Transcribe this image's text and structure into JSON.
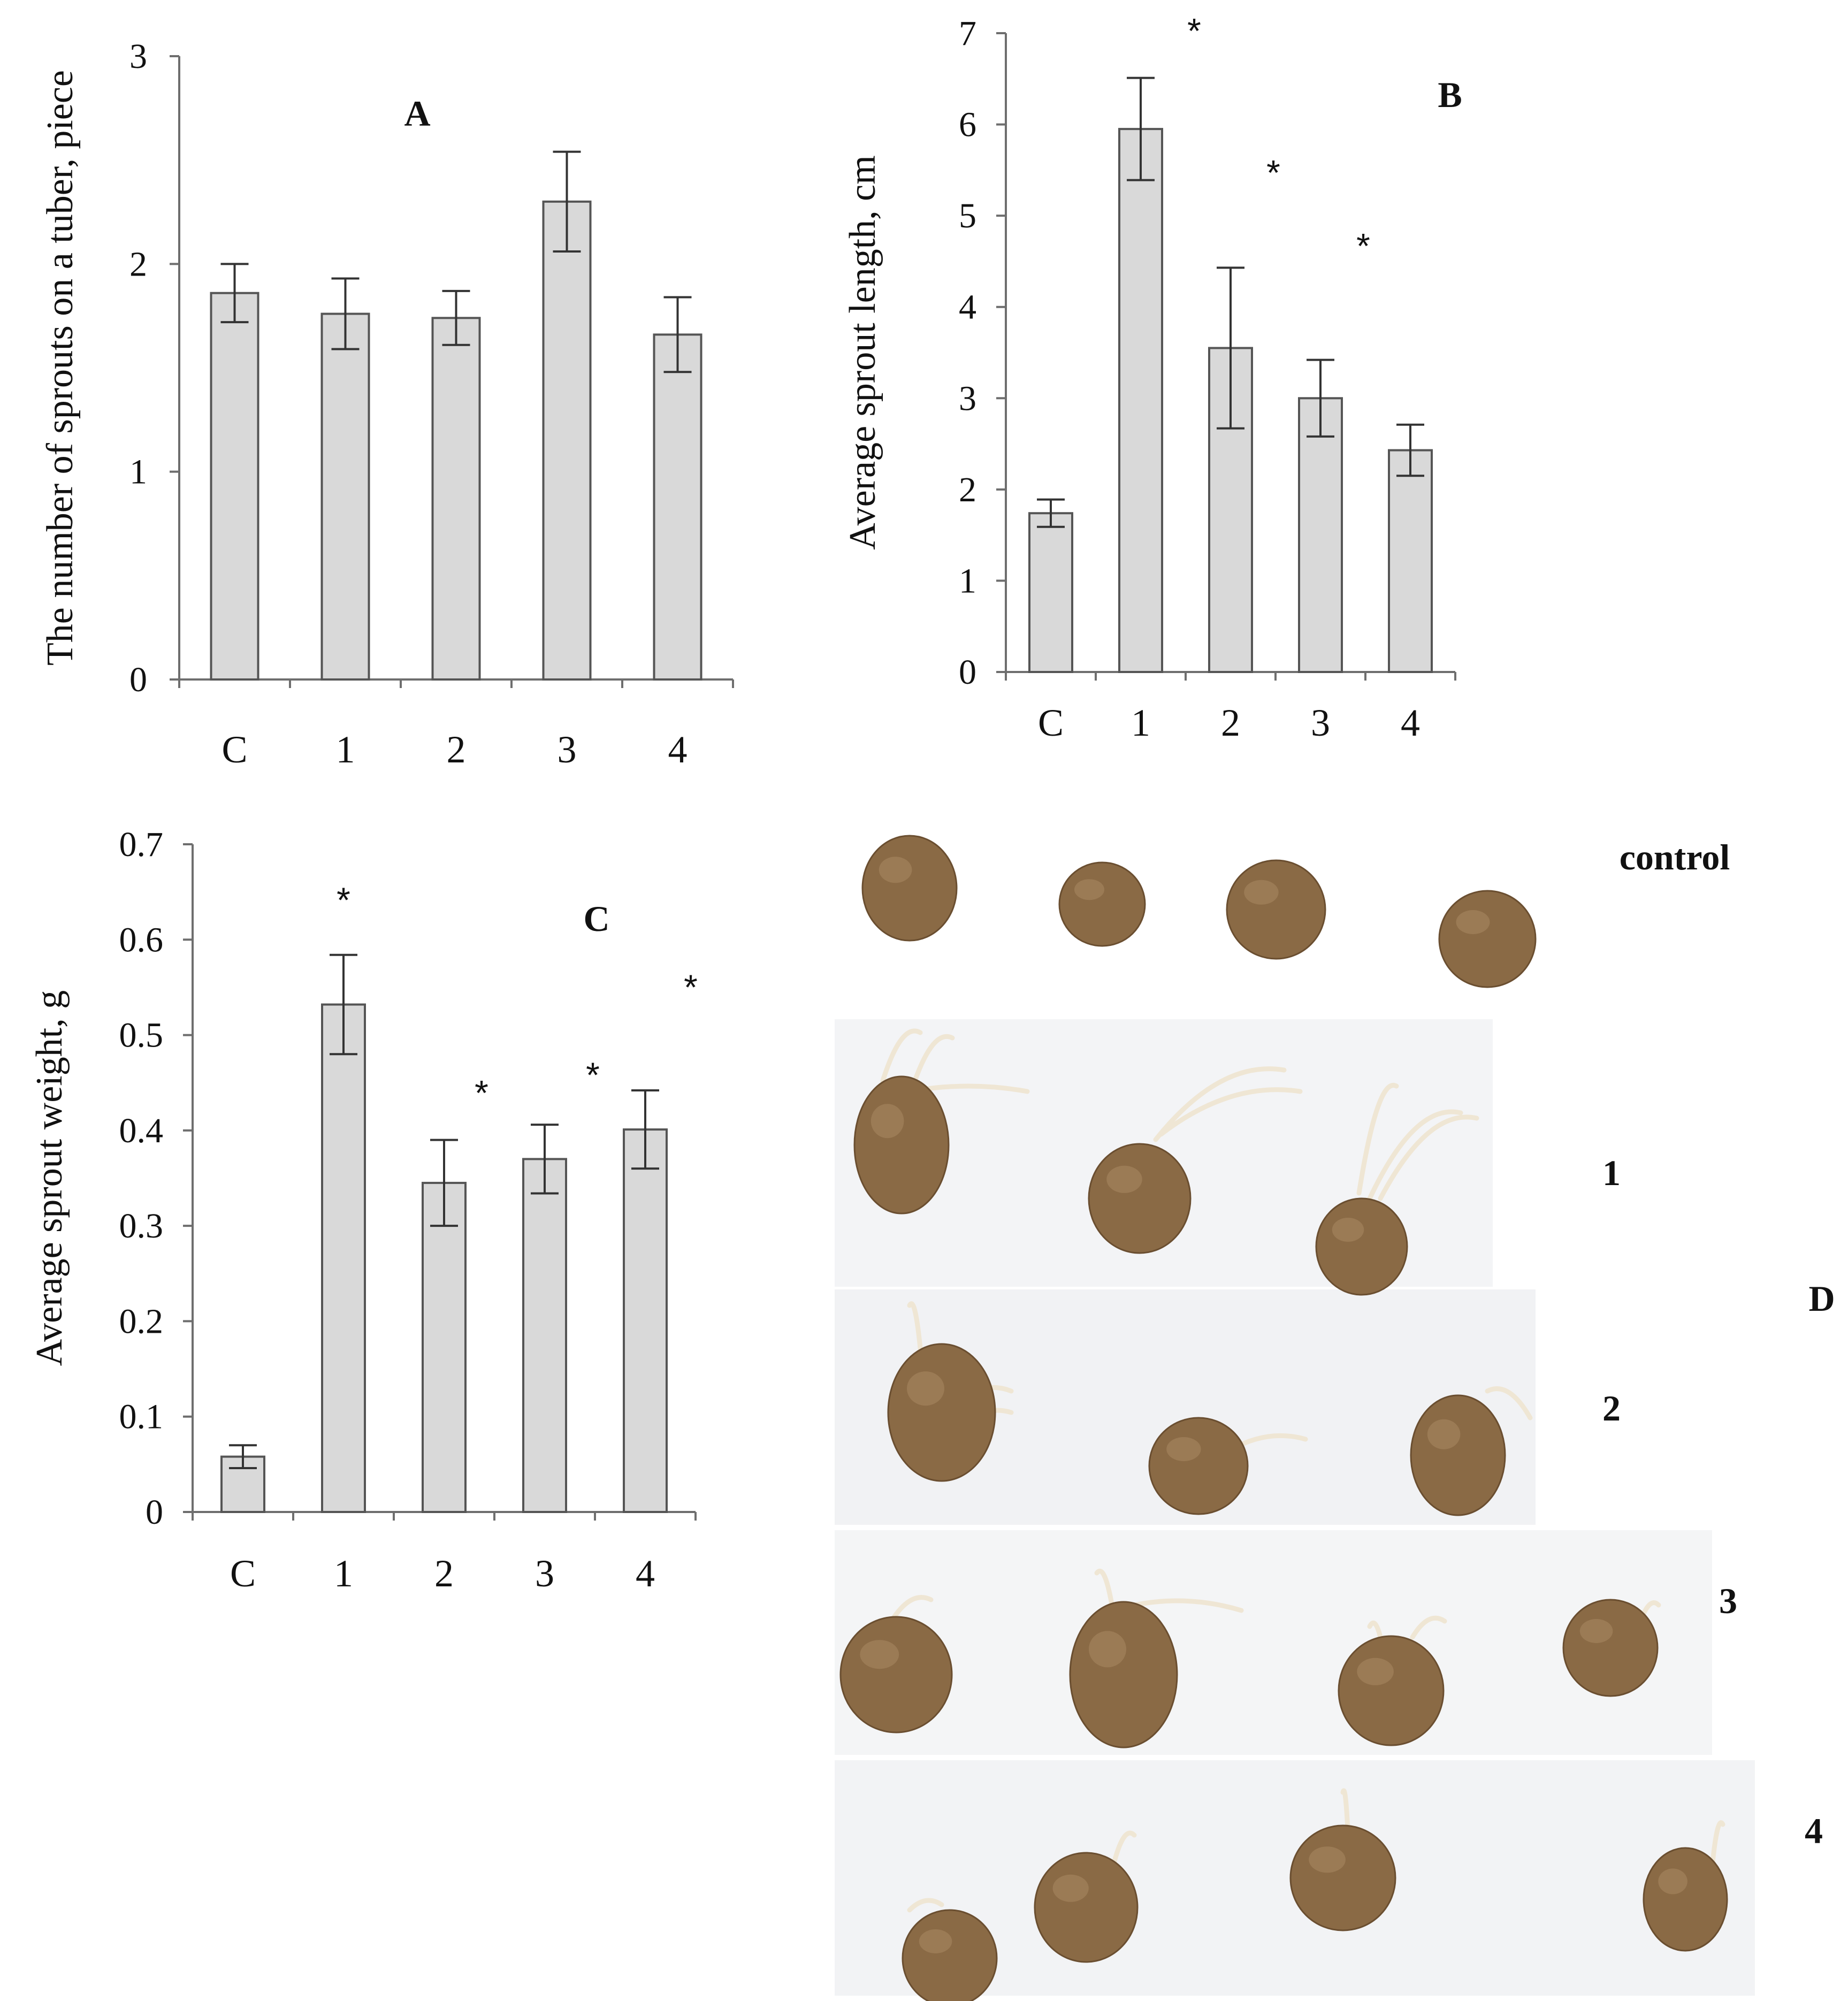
{
  "chart_data": [
    {
      "panel": "A",
      "type": "bar",
      "title": "A",
      "xlabel": "",
      "ylabel": "The number of sprouts on a tuber, piece",
      "categories": [
        "C",
        "1",
        "2",
        "3",
        "4"
      ],
      "values": [
        1.86,
        1.76,
        1.74,
        2.3,
        1.66
      ],
      "errors": [
        0.14,
        0.17,
        0.13,
        0.24,
        0.18
      ],
      "significant": [
        false,
        false,
        false,
        false,
        false
      ],
      "ylim": [
        0,
        3
      ],
      "yticks": [
        "0",
        "1",
        "2",
        "3"
      ]
    },
    {
      "panel": "B",
      "type": "bar",
      "title": "B",
      "xlabel": "",
      "ylabel": "Average sprout length, cm",
      "categories": [
        "C",
        "1",
        "2",
        "3",
        "4"
      ],
      "values": [
        1.74,
        5.95,
        3.55,
        3.0,
        2.43
      ],
      "errors": [
        0.15,
        0.56,
        0.88,
        0.42,
        0.28
      ],
      "significant": [
        false,
        true,
        true,
        true,
        false
      ],
      "ylim": [
        0,
        7
      ],
      "yticks": [
        "0",
        "1",
        "2",
        "3",
        "4",
        "5",
        "6",
        "7"
      ]
    },
    {
      "panel": "C",
      "type": "bar",
      "title": "C",
      "xlabel": "",
      "ylabel": "Average sprout weight, g",
      "categories": [
        "C",
        "1",
        "2",
        "3",
        "4"
      ],
      "values": [
        0.058,
        0.532,
        0.345,
        0.37,
        0.401
      ],
      "errors": [
        0.012,
        0.052,
        0.045,
        0.036,
        0.041
      ],
      "significant": [
        false,
        true,
        true,
        true,
        true
      ],
      "ylim": [
        0,
        0.7
      ],
      "yticks": [
        "0",
        "0.1",
        "0.2",
        "0.3",
        "0.4",
        "0.5",
        "0.6",
        "0.7"
      ]
    }
  ],
  "photo_panel": {
    "letter": "D",
    "rows": [
      {
        "label": "control",
        "tubers": 4,
        "sprouted": false
      },
      {
        "label": "1",
        "tubers": 3,
        "sprouted": true
      },
      {
        "label": "2",
        "tubers": 3,
        "sprouted": true
      },
      {
        "label": "3",
        "tubers": 4,
        "sprouted": true
      },
      {
        "label": "4",
        "tubers": 4,
        "sprouted": true
      }
    ]
  },
  "significance_marker": "*",
  "colors": {
    "bar_fill": "#d9d9d9",
    "bar_stroke": "#555555",
    "tuber": "#8a6a45"
  }
}
